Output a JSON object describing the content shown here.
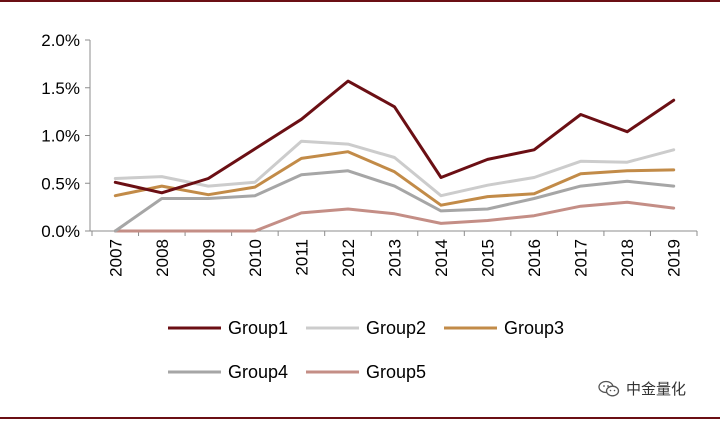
{
  "chart_data": {
    "type": "line",
    "title": "",
    "xlabel": "",
    "ylabel": "",
    "x": [
      "2007",
      "2008",
      "2009",
      "2010",
      "2011",
      "2012",
      "2013",
      "2014",
      "2015",
      "2016",
      "2017",
      "2018",
      "2019"
    ],
    "ylim": [
      0,
      2.0
    ],
    "yticks": [
      "0.0%",
      "0.5%",
      "1.0%",
      "1.5%",
      "2.0%"
    ],
    "ytick_values": [
      0,
      0.5,
      1.0,
      1.5,
      2.0
    ],
    "grid": false,
    "legend_position": "bottom",
    "series": [
      {
        "name": "Group1",
        "color": "#6b0f14",
        "values": [
          0.51,
          0.4,
          0.55,
          0.86,
          1.17,
          1.57,
          1.3,
          0.56,
          0.75,
          0.85,
          1.22,
          1.04,
          1.37
        ]
      },
      {
        "name": "Group2",
        "color": "#cccccc",
        "values": [
          0.55,
          0.57,
          0.47,
          0.51,
          0.94,
          0.91,
          0.77,
          0.37,
          0.48,
          0.56,
          0.73,
          0.72,
          0.85
        ]
      },
      {
        "name": "Group3",
        "color": "#c28b48",
        "values": [
          0.37,
          0.47,
          0.38,
          0.46,
          0.76,
          0.83,
          0.62,
          0.27,
          0.36,
          0.39,
          0.6,
          0.63,
          0.64
        ]
      },
      {
        "name": "Group4",
        "color": "#a6a6a6",
        "values": [
          0.0,
          0.34,
          0.34,
          0.37,
          0.59,
          0.63,
          0.47,
          0.21,
          0.23,
          0.34,
          0.47,
          0.52,
          0.47
        ]
      },
      {
        "name": "Group5",
        "color": "#c48e86",
        "values": [
          0.0,
          0.0,
          0.0,
          0.0,
          0.19,
          0.23,
          0.18,
          0.08,
          0.11,
          0.16,
          0.26,
          0.3,
          0.24
        ]
      }
    ]
  },
  "watermark": {
    "text": "中金量化",
    "icon": "wechat-icon"
  }
}
